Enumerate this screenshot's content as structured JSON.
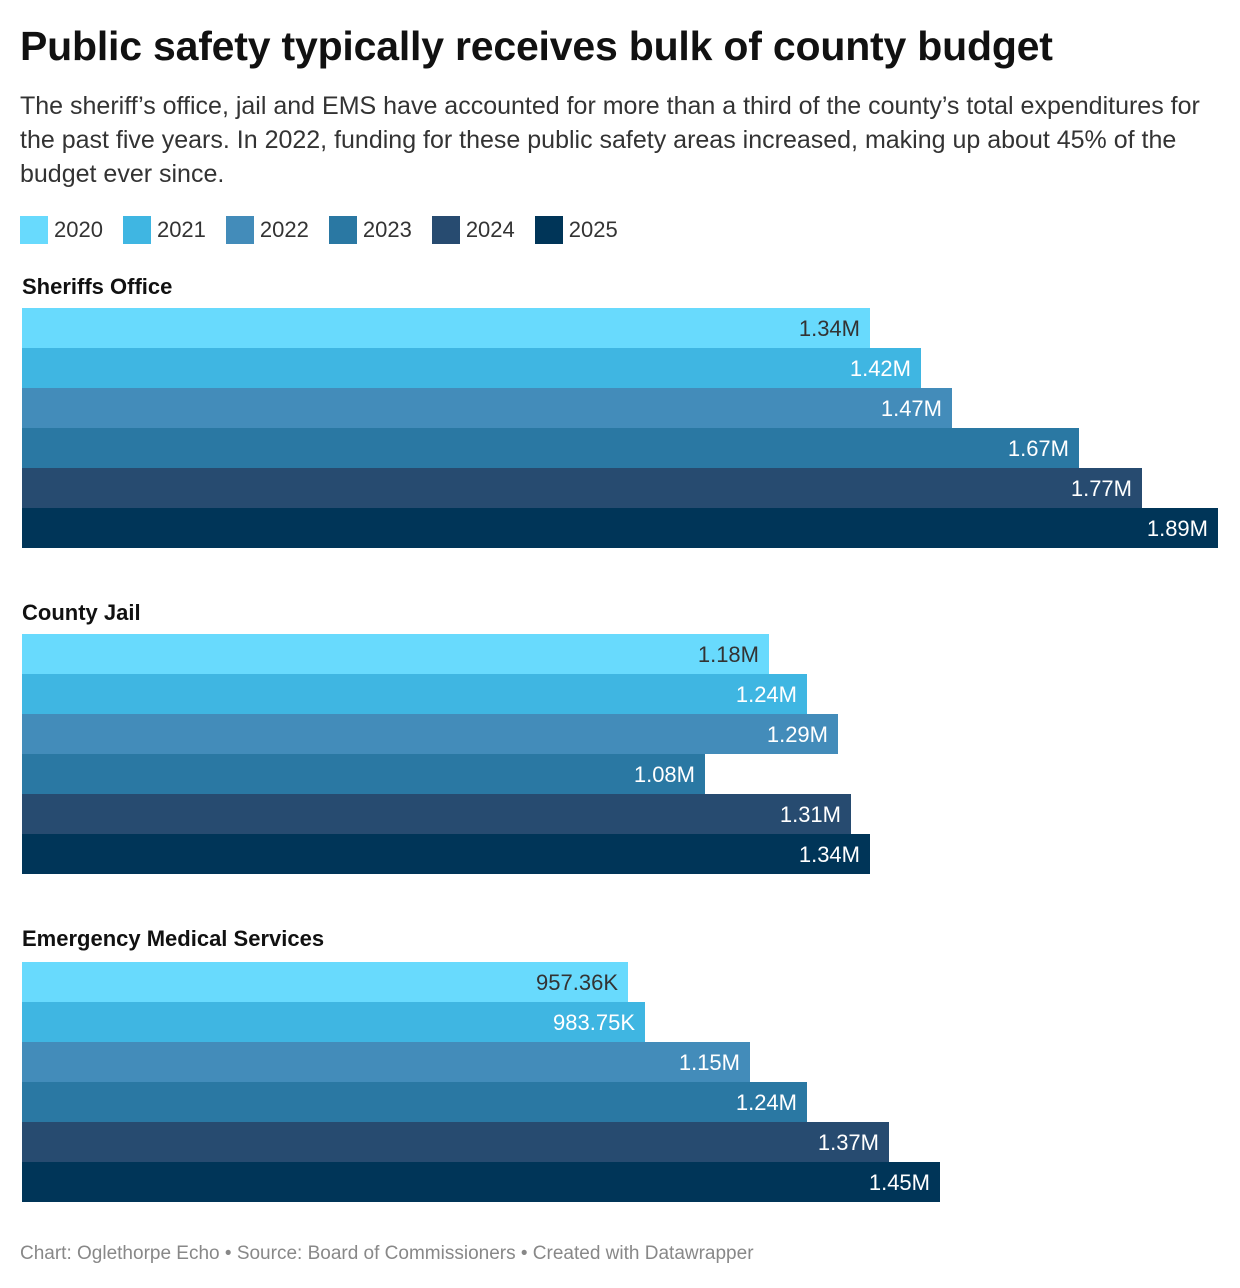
{
  "header": {
    "title": "Public safety typically receives bulk of county budget",
    "subtitle": "The sheriff’s office, jail and EMS have accounted for more than a third of the county’s total expenditures for the past five years. In 2022, funding for these public safety areas increased, making up about 45% of the budget ever since."
  },
  "chart_data": {
    "type": "bar",
    "orientation": "horizontal",
    "layout": "grouped-small-multiples",
    "grid": false,
    "legend_position": "top-left",
    "xlim": [
      0,
      1890000
    ],
    "series": [
      {
        "name": "2020",
        "color": "#68dafd"
      },
      {
        "name": "2021",
        "color": "#3fb6e2"
      },
      {
        "name": "2022",
        "color": "#438cba"
      },
      {
        "name": "2023",
        "color": "#2a78a3"
      },
      {
        "name": "2024",
        "color": "#274b70"
      },
      {
        "name": "2025",
        "color": "#003558"
      }
    ],
    "panels": [
      {
        "name": "Sheriffs Office",
        "values": [
          1340000,
          1420000,
          1470000,
          1670000,
          1770000,
          1890000
        ],
        "labels": [
          "1.34M",
          "1.42M",
          "1.47M",
          "1.67M",
          "1.77M",
          "1.89M"
        ]
      },
      {
        "name": "County Jail",
        "values": [
          1180000,
          1240000,
          1290000,
          1080000,
          1310000,
          1340000
        ],
        "labels": [
          "1.18M",
          "1.24M",
          "1.29M",
          "1.08M",
          "1.31M",
          "1.34M"
        ]
      },
      {
        "name": "Emergency Medical Services",
        "values": [
          957360,
          983750,
          1150000,
          1240000,
          1370000,
          1450000
        ],
        "labels": [
          "957.36K",
          "983.75K",
          "1.15M",
          "1.24M",
          "1.37M",
          "1.45M"
        ]
      }
    ],
    "label_colors": {
      "dark_text": "#333333",
      "light_text": "#ffffff"
    }
  },
  "footer": {
    "credit": "Chart: Oglethorpe Echo • Source: Board of Commissioners • Created with Datawrapper"
  }
}
